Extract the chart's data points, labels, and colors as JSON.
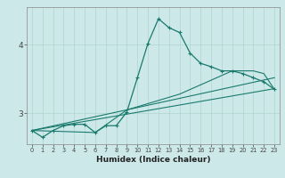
{
  "xlabel": "Humidex (Indice chaleur)",
  "background_color": "#cce8e8",
  "grid_color": "#b0d4d0",
  "line_color": "#1a7a6e",
  "x_ticks": [
    0,
    1,
    2,
    3,
    4,
    5,
    6,
    7,
    8,
    9,
    10,
    11,
    12,
    13,
    14,
    15,
    16,
    17,
    18,
    19,
    20,
    21,
    22,
    23
  ],
  "y_ticks": [
    3,
    4
  ],
  "ylim": [
    2.55,
    4.55
  ],
  "xlim": [
    -0.5,
    23.5
  ],
  "line1_x": [
    0,
    1,
    2,
    3,
    4,
    5,
    6,
    7,
    8,
    9,
    10,
    11,
    12,
    13,
    14,
    15,
    16,
    17,
    18,
    19,
    20,
    21,
    22,
    23
  ],
  "line1_y": [
    2.75,
    2.65,
    2.75,
    2.82,
    2.84,
    2.84,
    2.72,
    2.82,
    2.82,
    3.02,
    3.52,
    4.02,
    4.38,
    4.25,
    4.18,
    3.88,
    3.73,
    3.68,
    3.62,
    3.62,
    3.58,
    3.52,
    3.46,
    3.35
  ],
  "line2_x": [
    0,
    6,
    9,
    14,
    19,
    21,
    22,
    23
  ],
  "line2_y": [
    2.75,
    2.72,
    3.05,
    3.28,
    3.62,
    3.62,
    3.58,
    3.35
  ],
  "line3_x": [
    0,
    23
  ],
  "line3_y": [
    2.75,
    3.36
  ],
  "line4_x": [
    0,
    23
  ],
  "line4_y": [
    2.75,
    3.52
  ]
}
